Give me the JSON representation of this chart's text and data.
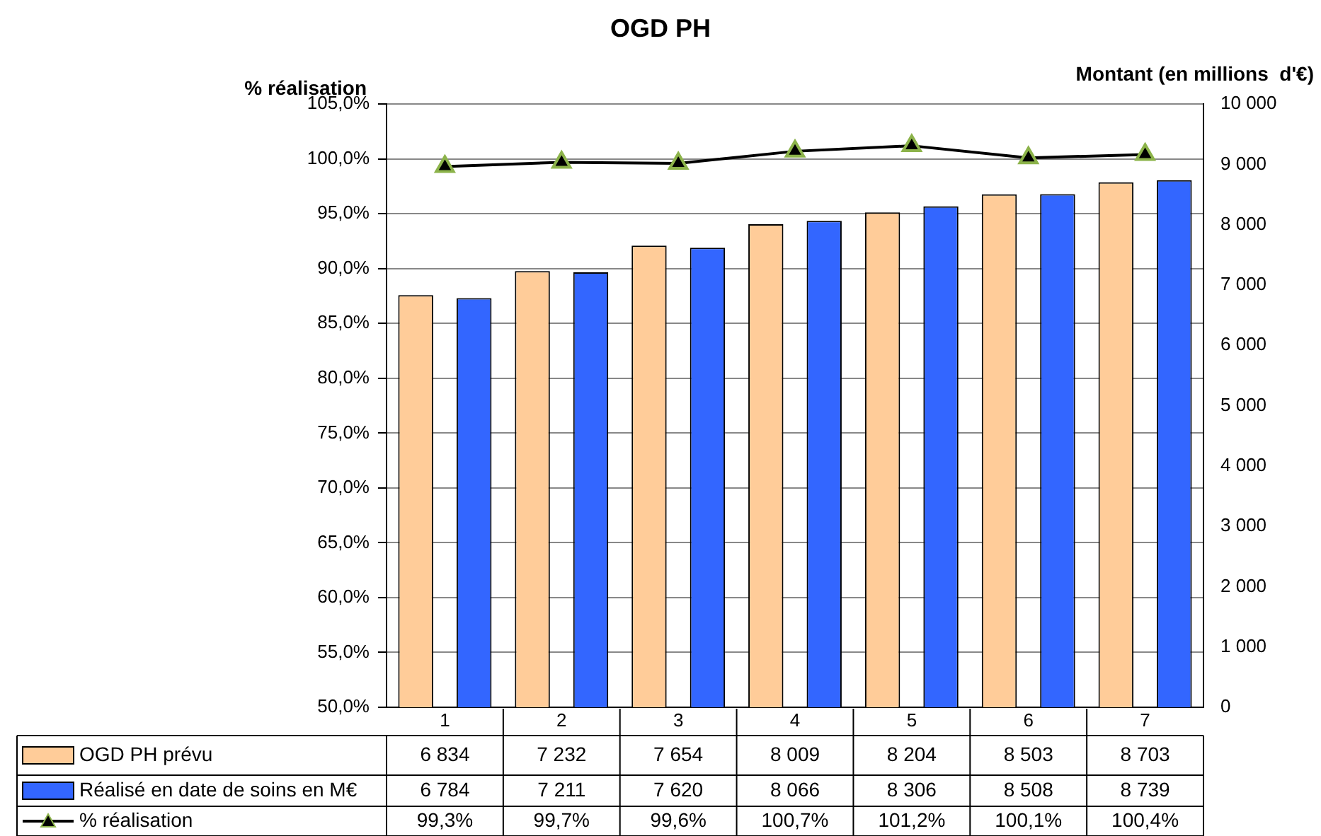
{
  "chart_data": {
    "type": "bar",
    "title": "OGD PH",
    "ylabel": "% réalisation",
    "y2label": "Montant (en millions  d'€)",
    "categories": [
      "1",
      "2",
      "3",
      "4",
      "5",
      "6",
      "7"
    ],
    "series": [
      {
        "name": "OGD PH prévu",
        "color": "#ffcc99",
        "axis": "y2",
        "values": [
          6834,
          7232,
          7654,
          8009,
          8204,
          8503,
          8703
        ],
        "value_labels": [
          "6 834",
          "7 232",
          "7 654",
          "8 009",
          "8 204",
          "8 503",
          "8 703"
        ]
      },
      {
        "name": "Réalisé en date de soins en M€",
        "color": "#3366ff",
        "axis": "y2",
        "values": [
          6784,
          7211,
          7620,
          8066,
          8306,
          8508,
          8739
        ],
        "value_labels": [
          "6 784",
          "7 211",
          "7 620",
          "8 066",
          "8 306",
          "8 508",
          "8 739"
        ]
      },
      {
        "name": "% réalisation",
        "type": "line",
        "color": "#000000",
        "axis": "y",
        "marker": "triangle",
        "values": [
          99.3,
          99.7,
          99.6,
          100.7,
          101.2,
          100.1,
          100.4
        ],
        "value_labels": [
          "99,3%",
          "99,7%",
          "99,6%",
          "100,7%",
          "101,2%",
          "100,1%",
          "100,4%"
        ]
      }
    ],
    "ylim": [
      50,
      105
    ],
    "yticks": [
      {
        "value": 50,
        "label": "50,0%"
      },
      {
        "value": 55,
        "label": "55,0%"
      },
      {
        "value": 60,
        "label": "60,0%"
      },
      {
        "value": 65,
        "label": "65,0%"
      },
      {
        "value": 70,
        "label": "70,0%"
      },
      {
        "value": 75,
        "label": "75,0%"
      },
      {
        "value": 80,
        "label": "80,0%"
      },
      {
        "value": 85,
        "label": "85,0%"
      },
      {
        "value": 90,
        "label": "90,0%"
      },
      {
        "value": 95,
        "label": "95,0%"
      },
      {
        "value": 100,
        "label": "100,0%"
      },
      {
        "value": 105,
        "label": "105,0%"
      }
    ],
    "y2lim": [
      0,
      10000
    ],
    "y2ticks": [
      0,
      {
        "value": 1000,
        "label": "1 000"
      },
      {
        "value": 2000,
        "label": "2 000"
      },
      {
        "value": 3000,
        "label": "3 000"
      },
      {
        "value": 4000,
        "label": "4 000"
      },
      {
        "value": 5000,
        "label": "5 000"
      },
      {
        "value": 6000,
        "label": "6 000"
      },
      {
        "value": 7000,
        "label": "7 000"
      },
      {
        "value": 8000,
        "label": "8 000"
      },
      {
        "value": 9000,
        "label": "9 000"
      },
      {
        "value": 10000,
        "label": "10 000"
      }
    ],
    "grid": "y",
    "legend": "bottom"
  }
}
